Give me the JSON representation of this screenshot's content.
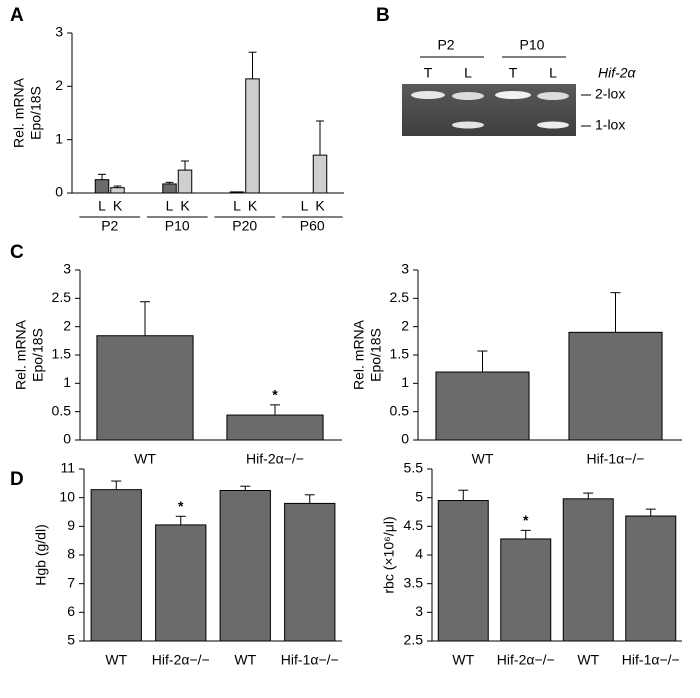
{
  "panels": [
    "A",
    "B",
    "C",
    "D"
  ],
  "chart_data": [
    {
      "type": "bar",
      "ylabel": "Rel. mRNA Epo/18S",
      "categories": [
        "P2",
        "P10",
        "P20",
        "P60"
      ],
      "series": [
        {
          "name": "L",
          "color": "#6b6b6b",
          "values": [
            0.25,
            0.17,
            0.02,
            0
          ],
          "errors": [
            0.1,
            0.03,
            0,
            0
          ]
        },
        {
          "name": "K",
          "color": "#cfcfcf",
          "values": [
            0.1,
            0.43,
            2.14,
            0.71
          ],
          "errors": [
            0.03,
            0.17,
            0.5,
            0.64
          ]
        }
      ],
      "ylim": [
        0,
        3
      ],
      "yticks": [
        0,
        1,
        2,
        3
      ]
    },
    {
      "type": "bar",
      "ylabel": "Rel. mRNA Epo/18S",
      "categories": [
        "WT",
        "Hif-2α−/−"
      ],
      "values": [
        1.84,
        0.44
      ],
      "errors": [
        0.6,
        0.18
      ],
      "annotations": [
        null,
        "*"
      ],
      "color": "#6b6b6b",
      "ylim": [
        0,
        3
      ],
      "yticks": [
        0,
        0.5,
        1,
        1.5,
        2,
        2.5,
        3
      ]
    },
    {
      "type": "bar",
      "ylabel": "Rel. mRNA Epo/18S",
      "categories": [
        "WT",
        "Hif-1α−/−"
      ],
      "values": [
        1.2,
        1.9
      ],
      "errors": [
        0.37,
        0.7
      ],
      "color": "#6b6b6b",
      "ylim": [
        0,
        3
      ],
      "yticks": [
        0,
        0.5,
        1,
        1.5,
        2,
        2.5,
        3
      ]
    },
    {
      "type": "bar",
      "ylabel": "Hgb (g/dl)",
      "categories": [
        "WT",
        "Hif-2α−/−",
        "WT",
        "Hif-1α−/−"
      ],
      "values": [
        10.28,
        9.05,
        10.25,
        9.8
      ],
      "errors": [
        0.3,
        0.3,
        0.15,
        0.3
      ],
      "annotations": [
        null,
        "*",
        null,
        null
      ],
      "color": "#6b6b6b",
      "ylim": [
        5,
        11
      ],
      "yticks": [
        5,
        6,
        7,
        8,
        9,
        10,
        11
      ]
    },
    {
      "type": "bar",
      "ylabel": "rbc (×10⁶/μl)",
      "categories": [
        "WT",
        "Hif-2α−/−",
        "WT",
        "Hif-1α−/−"
      ],
      "values": [
        4.95,
        4.28,
        4.98,
        4.68
      ],
      "errors": [
        0.18,
        0.15,
        0.1,
        0.12
      ],
      "annotations": [
        null,
        "*",
        null,
        null
      ],
      "color": "#6b6b6b",
      "ylim": [
        2.5,
        5.5
      ],
      "yticks": [
        2.5,
        3,
        3.5,
        4,
        4.5,
        5,
        5.5
      ]
    }
  ],
  "gel": {
    "groups": [
      "P2",
      "P10"
    ],
    "lanes": [
      "T",
      "L",
      "T",
      "L"
    ],
    "gene": "Hif-2α",
    "bands": [
      "2-lox",
      "1-lox"
    ]
  }
}
